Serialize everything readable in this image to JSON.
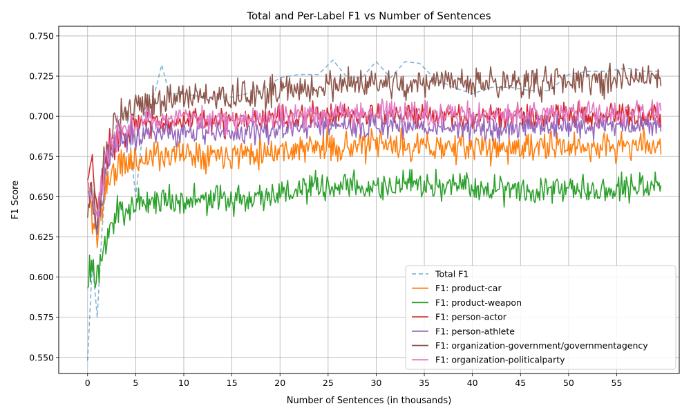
{
  "chart_data": {
    "type": "line",
    "title": "Total and Per-Label F1 vs Number of Sentences",
    "xlabel": "Number of Sentences (in thousands)",
    "ylabel": "F1 Score",
    "xlim": [
      -3.0,
      61.5
    ],
    "ylim": [
      0.54,
      0.756
    ],
    "xticks": [
      0,
      5,
      10,
      15,
      20,
      25,
      30,
      35,
      40,
      45,
      50,
      55
    ],
    "xtick_labels": [
      "0",
      "5",
      "10",
      "15",
      "20",
      "25",
      "30",
      "35",
      "40",
      "45",
      "50",
      "55"
    ],
    "yticks": [
      0.55,
      0.575,
      0.6,
      0.625,
      0.65,
      0.675,
      0.7,
      0.725,
      0.75
    ],
    "ytick_labels": [
      "0.550",
      "0.575",
      "0.600",
      "0.625",
      "0.650",
      "0.675",
      "0.700",
      "0.725",
      "0.750"
    ],
    "grid": true,
    "legend_position": "lower right",
    "series": [
      {
        "name": "Total F1",
        "color": "#1f77b4",
        "dashed": true,
        "x": [
          0,
          0.5,
          1,
          1.5,
          2,
          3,
          4,
          5,
          6,
          7,
          7.7,
          8.5,
          10,
          12,
          15,
          18,
          20,
          22,
          24,
          25.5,
          27,
          28.5,
          30,
          31.5,
          33,
          34.5,
          36,
          38,
          40,
          42,
          44,
          46,
          48,
          50,
          52,
          54,
          56,
          58,
          59.5
        ],
        "y": [
          0.548,
          0.61,
          0.575,
          0.63,
          0.665,
          0.695,
          0.705,
          0.65,
          0.705,
          0.715,
          0.732,
          0.714,
          0.714,
          0.712,
          0.712,
          0.716,
          0.724,
          0.726,
          0.726,
          0.735,
          0.724,
          0.724,
          0.734,
          0.724,
          0.734,
          0.733,
          0.724,
          0.718,
          0.714,
          0.718,
          0.718,
          0.716,
          0.716,
          0.726,
          0.728,
          0.728,
          0.73,
          0.728,
          0.728
        ]
      },
      {
        "name": "F1: product-car",
        "color": "#ff7f0e",
        "dashed": false,
        "base": {
          "x": [
            0,
            0.5,
            1,
            1.5,
            2,
            3,
            4,
            5,
            7,
            10,
            15,
            20,
            25,
            30,
            35,
            40,
            45,
            50,
            55,
            59.6
          ],
          "y": [
            0.656,
            0.638,
            0.624,
            0.642,
            0.66,
            0.667,
            0.671,
            0.672,
            0.676,
            0.677,
            0.677,
            0.679,
            0.681,
            0.682,
            0.681,
            0.681,
            0.68,
            0.681,
            0.681,
            0.683
          ]
        },
        "noise": 0.007,
        "seed": 11
      },
      {
        "name": "F1: product-weapon",
        "color": "#2ca02c",
        "dashed": false,
        "base": {
          "x": [
            0,
            0.5,
            1,
            1.5,
            2,
            3,
            4,
            5,
            7,
            10,
            15,
            20,
            25,
            30,
            35,
            40,
            45,
            50,
            55,
            59.6
          ],
          "y": [
            0.602,
            0.606,
            0.593,
            0.61,
            0.628,
            0.638,
            0.644,
            0.646,
            0.648,
            0.648,
            0.648,
            0.652,
            0.656,
            0.656,
            0.657,
            0.656,
            0.655,
            0.655,
            0.656,
            0.657
          ]
        },
        "noise": 0.007,
        "seed": 23
      },
      {
        "name": "F1: person-actor",
        "color": "#d62728",
        "dashed": false,
        "base": {
          "x": [
            0,
            0.5,
            1,
            1.5,
            2,
            3,
            4,
            5,
            7,
            10,
            15,
            20,
            25,
            30,
            35,
            40,
            45,
            50,
            55,
            59.6
          ],
          "y": [
            0.66,
            0.67,
            0.64,
            0.66,
            0.678,
            0.688,
            0.692,
            0.694,
            0.697,
            0.697,
            0.696,
            0.699,
            0.701,
            0.701,
            0.7,
            0.7,
            0.7,
            0.701,
            0.701,
            0.701
          ]
        },
        "noise": 0.006,
        "seed": 37
      },
      {
        "name": "F1: person-athlete",
        "color": "#9467bd",
        "dashed": false,
        "base": {
          "x": [
            0,
            0.5,
            1,
            1.5,
            2,
            3,
            4,
            5,
            7,
            10,
            15,
            20,
            25,
            30,
            35,
            40,
            45,
            50,
            55,
            59.6
          ],
          "y": [
            0.648,
            0.652,
            0.63,
            0.65,
            0.67,
            0.682,
            0.686,
            0.688,
            0.69,
            0.69,
            0.689,
            0.692,
            0.694,
            0.694,
            0.693,
            0.693,
            0.693,
            0.694,
            0.694,
            0.695
          ]
        },
        "noise": 0.006,
        "seed": 41
      },
      {
        "name": "F1: organization-government/governmentagency",
        "color": "#8c564b",
        "dashed": false,
        "base": {
          "x": [
            0,
            0.5,
            1,
            1.5,
            2,
            3,
            4,
            5,
            7,
            10,
            15,
            20,
            25,
            30,
            35,
            40,
            45,
            50,
            55,
            59.6
          ],
          "y": [
            0.644,
            0.646,
            0.636,
            0.658,
            0.68,
            0.7,
            0.706,
            0.707,
            0.71,
            0.712,
            0.712,
            0.716,
            0.719,
            0.72,
            0.72,
            0.721,
            0.721,
            0.722,
            0.724,
            0.725
          ]
        },
        "noise": 0.007,
        "seed": 53
      },
      {
        "name": "F1: organization-politicalparty",
        "color": "#e377c2",
        "dashed": false,
        "base": {
          "x": [
            0,
            0.5,
            1,
            1.5,
            2,
            3,
            4,
            5,
            7,
            10,
            15,
            20,
            25,
            30,
            35,
            40,
            45,
            50,
            55,
            59.6
          ],
          "y": [
            0.655,
            0.652,
            0.636,
            0.656,
            0.676,
            0.69,
            0.694,
            0.696,
            0.698,
            0.698,
            0.697,
            0.7,
            0.702,
            0.702,
            0.701,
            0.701,
            0.701,
            0.702,
            0.702,
            0.703
          ]
        },
        "noise": 0.006,
        "seed": 67
      }
    ]
  }
}
